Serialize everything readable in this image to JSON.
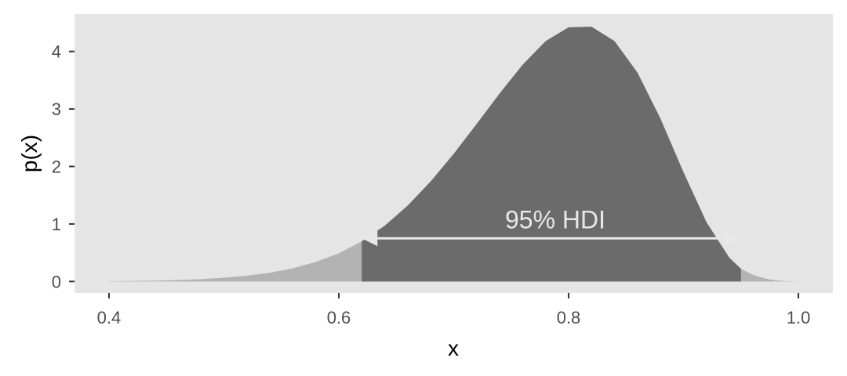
{
  "chart_data": {
    "type": "area",
    "title": "",
    "xlabel": "x",
    "ylabel": "p(x)",
    "xlim": [
      0.37,
      1.03
    ],
    "ylim": [
      -0.2,
      4.65
    ],
    "xticks": [
      0.4,
      0.6,
      0.8,
      1.0
    ],
    "xtick_labels": [
      "0.4",
      "0.6",
      "0.8",
      "1.0"
    ],
    "yticks": [
      0,
      1,
      2,
      3,
      4
    ],
    "ytick_labels": [
      "0",
      "1",
      "2",
      "3",
      "4"
    ],
    "grid": false,
    "legend": "none",
    "series": [
      {
        "x": [
          0.4,
          0.42,
          0.44,
          0.46,
          0.48,
          0.5,
          0.52,
          0.54,
          0.56,
          0.58,
          0.6,
          0.62,
          0.64,
          0.66,
          0.68,
          0.7,
          0.72,
          0.74,
          0.76,
          0.78,
          0.8,
          0.82,
          0.84,
          0.86,
          0.88,
          0.9,
          0.92,
          0.94,
          0.95,
          0.96,
          0.97,
          0.98,
          0.99,
          1.0
        ],
        "values": [
          0.004,
          0.008,
          0.014,
          0.024,
          0.04,
          0.065,
          0.1,
          0.15,
          0.23,
          0.34,
          0.49,
          0.7,
          0.97,
          1.32,
          1.74,
          2.22,
          2.74,
          3.27,
          3.77,
          4.18,
          4.42,
          4.43,
          4.18,
          3.63,
          2.83,
          1.9,
          1.03,
          0.41,
          0.22,
          0.12,
          0.055,
          0.02,
          0.005,
          0.0
        ]
      }
    ],
    "hdi": {
      "lower": 0.62,
      "upper": 0.95,
      "height": 0.75,
      "label": "95% HDI"
    },
    "colors": {
      "panel": "#e5e5e5",
      "tail": "#b3b3b3",
      "hdi_fill": "#6b6b6b",
      "annotation": "#e8e8e8",
      "tick": "#333333"
    }
  }
}
